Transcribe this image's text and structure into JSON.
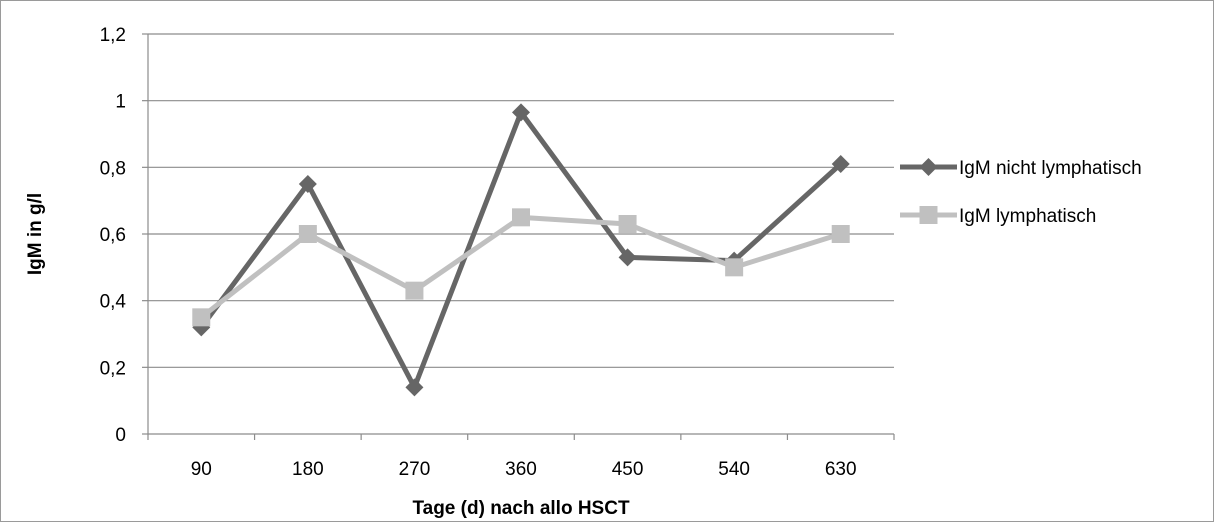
{
  "chart_data": {
    "type": "line",
    "title": "",
    "xlabel": "Tage (d) nach allo HSCT",
    "ylabel": "IgM in g/l",
    "categories": [
      "90",
      "180",
      "270",
      "360",
      "450",
      "540",
      "630"
    ],
    "y_ticks": [
      "0",
      "0,2",
      "0,4",
      "0,6",
      "0,8",
      "1",
      "1,2"
    ],
    "ylim": [
      0,
      1.2
    ],
    "grid": "horizontal",
    "legend_position": "right",
    "series": [
      {
        "name": "IgM nicht lymphatisch",
        "values": [
          0.32,
          0.75,
          0.14,
          0.965,
          0.53,
          0.52,
          0.81
        ],
        "color": "#666666",
        "marker": "diamond"
      },
      {
        "name": "IgM lymphatisch",
        "values": [
          0.35,
          0.6,
          0.43,
          0.65,
          0.63,
          0.5,
          0.6
        ],
        "color": "#c0c0c0",
        "marker": "square"
      }
    ]
  }
}
